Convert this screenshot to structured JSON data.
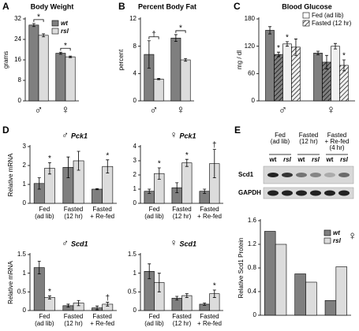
{
  "chart_data": [
    {
      "panel_letter": "A",
      "type": "bar",
      "title": "Body Weight",
      "ylabel": "grams",
      "categories": [
        "♂",
        "♀"
      ],
      "ylim": [
        0,
        32
      ],
      "yticks": [
        0,
        8,
        16,
        24,
        32
      ],
      "comparison_brackets": true,
      "legend": "upper right",
      "series": [
        {
          "name": "wt",
          "color": "#7f7f7f",
          "values": [
            29.6,
            18.6
          ],
          "errors": [
            0.6,
            0.4
          ]
        },
        {
          "name": "rsl",
          "color": "#dcdcdc",
          "values": [
            25.6,
            17.2
          ],
          "errors": [
            0.6,
            0.3
          ],
          "annotations": [
            "*",
            "*"
          ]
        }
      ]
    },
    {
      "panel_letter": "B",
      "type": "bar",
      "title": "Percent Body Fat",
      "ylabel": "percent",
      "categories": [
        "♂",
        "♀"
      ],
      "ylim": [
        0,
        12
      ],
      "yticks": [
        0,
        4,
        8,
        12
      ],
      "comparison_brackets": true,
      "series": [
        {
          "color": "#7f7f7f",
          "values": [
            6.8,
            9.2
          ],
          "errors": [
            2.0,
            0.5
          ]
        },
        {
          "color": "#dcdcdc",
          "values": [
            3.2,
            6.0
          ],
          "errors": [
            0.1,
            0.2
          ],
          "annotations": [
            "†",
            "*"
          ]
        }
      ]
    },
    {
      "panel_letter": "C",
      "type": "bar",
      "title": "Blood Glucose",
      "ylabel": "mg / dl",
      "categories": [
        "♂",
        "♀"
      ],
      "ylim": [
        0,
        180
      ],
      "yticks": [
        0,
        60,
        120,
        180
      ],
      "legend_entries": [
        {
          "name": "Fed (ad lib)",
          "color": "#ffffff",
          "hatch": false
        },
        {
          "name": "Fasted (12 hr)",
          "color": "#ffffff",
          "hatch": true
        }
      ],
      "series": [
        {
          "color": "#7f7f7f",
          "hatch": false,
          "values": [
            155,
            105
          ],
          "errors": [
            8,
            4
          ]
        },
        {
          "color": "#7f7f7f",
          "hatch": true,
          "values": [
            102,
            85
          ],
          "errors": [
            5,
            15
          ],
          "annotations": [
            "*",
            null
          ]
        },
        {
          "color": "#f0f0f0",
          "hatch": false,
          "values": [
            125,
            120
          ],
          "errors": [
            5,
            6
          ],
          "annotations": [
            "*",
            null
          ]
        },
        {
          "color": "#f0f0f0",
          "hatch": true,
          "values": [
            118,
            78
          ],
          "errors": [
            18,
            12
          ],
          "annotations": [
            null,
            "*"
          ]
        }
      ]
    },
    {
      "panel_letter": "D",
      "type": "bar",
      "title_sex": "♂",
      "title_gene": "Pck1",
      "ylabel": "Relative mRNA",
      "categories": [
        [
          "Fed",
          "(ad lib)"
        ],
        [
          "Fasted",
          "(12 hr)"
        ],
        [
          "Fasted",
          "+ Re-fed"
        ]
      ],
      "ylim": [
        0,
        3
      ],
      "yticks": [
        0,
        1,
        2,
        3
      ],
      "series": [
        {
          "color": "#7f7f7f",
          "values": [
            1.05,
            1.9,
            0.75
          ],
          "errors": [
            0.3,
            0.55,
            0.03
          ]
        },
        {
          "color": "#dcdcdc",
          "values": [
            1.85,
            2.25,
            1.95
          ],
          "errors": [
            0.3,
            0.5,
            0.35
          ],
          "annotations": [
            "*",
            null,
            "*"
          ]
        }
      ]
    },
    {
      "type": "bar",
      "title_sex": "♀",
      "title_gene": "Pck1",
      "categories": [
        [
          "Fed",
          "(ad lib)"
        ],
        [
          "Fasted",
          "(12 hr)"
        ],
        [
          "Fasted",
          "+ Re-fed"
        ]
      ],
      "ylim": [
        0,
        4
      ],
      "yticks": [
        0,
        1,
        2,
        3,
        4
      ],
      "series": [
        {
          "color": "#7f7f7f",
          "values": [
            0.85,
            1.1,
            0.85
          ],
          "errors": [
            0.15,
            0.35,
            0.15
          ]
        },
        {
          "color": "#dcdcdc",
          "values": [
            2.1,
            2.85,
            2.8
          ],
          "errors": [
            0.4,
            0.25,
            1.0
          ],
          "annotations": [
            "*",
            "*",
            "†"
          ]
        }
      ]
    },
    {
      "type": "bar",
      "title_sex": "♂",
      "title_gene": "Scd1",
      "ylabel": "Relative mRNA",
      "categories": [
        [
          "Fed",
          "(ad lib)"
        ],
        [
          "Fasted",
          "(12 hr)"
        ],
        [
          "Fasted",
          "+ Re-fed"
        ]
      ],
      "ylim": [
        0,
        1.5
      ],
      "yticks": [
        0,
        0.5,
        1,
        1.5
      ],
      "series": [
        {
          "color": "#7f7f7f",
          "values": [
            1.15,
            0.13,
            0.07
          ],
          "errors": [
            0.17,
            0.04,
            0.05
          ]
        },
        {
          "color": "#dcdcdc",
          "values": [
            0.35,
            0.2,
            0.17
          ],
          "errors": [
            0.04,
            0.07,
            0.05
          ],
          "annotations": [
            "*",
            null,
            "†"
          ]
        }
      ]
    },
    {
      "type": "bar",
      "title_sex": "♀",
      "title_gene": "Scd1",
      "categories": [
        [
          "Fed",
          "(ad lib)"
        ],
        [
          "Fasted",
          "(12 hr)"
        ],
        [
          "Fasted",
          "+ Re-fed"
        ]
      ],
      "ylim": [
        0,
        1.5
      ],
      "yticks": [
        0,
        0.5,
        1,
        1.5
      ],
      "series": [
        {
          "color": "#7f7f7f",
          "values": [
            1.05,
            0.33,
            0.17
          ],
          "errors": [
            0.2,
            0.05,
            0.03
          ]
        },
        {
          "color": "#dcdcdc",
          "values": [
            0.75,
            0.4,
            0.45
          ],
          "errors": [
            0.25,
            0.05,
            0.1
          ],
          "annotations": [
            null,
            null,
            "*"
          ]
        }
      ]
    },
    {
      "panel_letter": "E",
      "type": "bar",
      "ylabel": "Relative Scd1 Protein",
      "categories": [
        null,
        null,
        null
      ],
      "ylim": [
        0,
        1.6
      ],
      "yticks": [
        0,
        0.4,
        0.8,
        1.2,
        1.6
      ],
      "legend": "upper right",
      "legend_title": "♀",
      "blot": {
        "groups": [
          [
            "Fed",
            "(ad lib)"
          ],
          [
            "Fasted",
            "(12 hr)"
          ],
          [
            "Fasted",
            "+ Re-fed",
            "(4 hr)"
          ]
        ],
        "lanes": [
          "wt",
          "rsl",
          "wt",
          "rsl",
          "wt",
          "rsl"
        ],
        "bands": [
          "Scd1",
          "GAPDH"
        ]
      },
      "series": [
        {
          "name": "wt",
          "color": "#7f7f7f",
          "values": [
            1.42,
            0.7,
            0.25
          ]
        },
        {
          "name": "rsl",
          "color": "#dcdcdc",
          "values": [
            1.2,
            0.56,
            0.82
          ]
        }
      ]
    }
  ]
}
